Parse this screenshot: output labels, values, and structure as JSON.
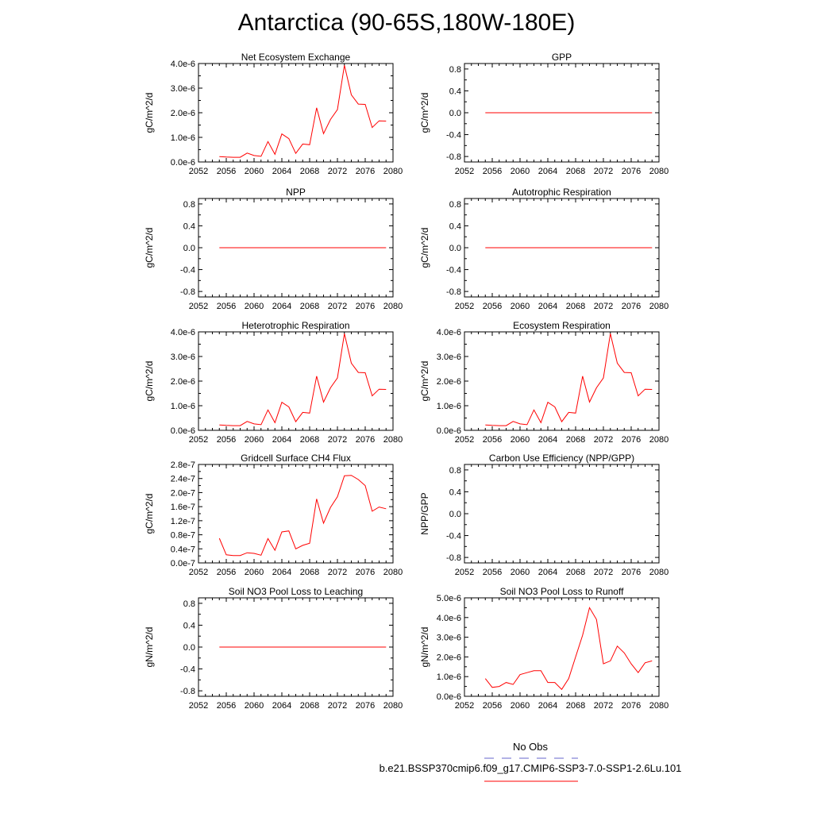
{
  "title": "Antarctica (90-65S,180W-180E)",
  "legend": {
    "obs_label": "No Obs",
    "obs_color": "#6666cc",
    "model_label": "b.e21.BSSP370cmip6.f09_g17.CMIP6-SSP3-7.0-SSP1-2.6Lu.101",
    "model_color": "#ff0000"
  },
  "chart_data": [
    {
      "type": "line",
      "title": "Net Ecosystem Exchange",
      "ylabel": "gC/m^2/d",
      "xlim": [
        2052,
        2080
      ],
      "xticks": [
        "2052",
        "2056",
        "2060",
        "2064",
        "2068",
        "2072",
        "2076",
        "2080"
      ],
      "ylim": [
        0,
        4e-06
      ],
      "yticks": [
        "0.0e-6",
        "1.0e-6",
        "2.0e-6",
        "3.0e-6",
        "4.0e-6"
      ],
      "x": [
        2055,
        2056,
        2057,
        2058,
        2059,
        2060,
        2061,
        2062,
        2063,
        2064,
        2065,
        2066,
        2067,
        2068,
        2069,
        2070,
        2071,
        2072,
        2073,
        2074,
        2075,
        2076,
        2077,
        2078,
        2079
      ],
      "series": [
        {
          "values": [
            2.2e-07,
            2e-07,
            1.9e-07,
            1.9e-07,
            3.6e-07,
            2.6e-07,
            2.3e-07,
            8.3e-07,
            3.1e-07,
            1.14e-06,
            9.5e-07,
            3.5e-07,
            7.3e-07,
            7e-07,
            2.2e-06,
            1.15e-06,
            1.73e-06,
            2.13e-06,
            3.93e-06,
            2.73e-06,
            2.35e-06,
            2.34e-06,
            1.4e-06,
            1.67e-06,
            1.66e-06
          ]
        }
      ]
    },
    {
      "type": "line",
      "title": "GPP",
      "ylabel": "gC/m^2/d",
      "xlim": [
        2052,
        2080
      ],
      "xticks": [
        "2052",
        "2056",
        "2060",
        "2064",
        "2068",
        "2072",
        "2076",
        "2080"
      ],
      "ylim": [
        -0.9,
        0.9
      ],
      "yticks": [
        "-0.8",
        "-0.4",
        "0.0",
        "0.4",
        "0.8"
      ],
      "x": [
        2055,
        2079
      ],
      "series": [
        {
          "values": [
            0,
            0
          ]
        }
      ]
    },
    {
      "type": "line",
      "title": "NPP",
      "ylabel": "gC/m^2/d",
      "xlim": [
        2052,
        2080
      ],
      "xticks": [
        "2052",
        "2056",
        "2060",
        "2064",
        "2068",
        "2072",
        "2076",
        "2080"
      ],
      "ylim": [
        -0.9,
        0.9
      ],
      "yticks": [
        "-0.8",
        "-0.4",
        "0.0",
        "0.4",
        "0.8"
      ],
      "x": [
        2055,
        2079
      ],
      "series": [
        {
          "values": [
            0,
            0
          ]
        }
      ]
    },
    {
      "type": "line",
      "title": "Autotrophic Respiration",
      "ylabel": "gC/m^2/d",
      "xlim": [
        2052,
        2080
      ],
      "xticks": [
        "2052",
        "2056",
        "2060",
        "2064",
        "2068",
        "2072",
        "2076",
        "2080"
      ],
      "ylim": [
        -0.9,
        0.9
      ],
      "yticks": [
        "-0.8",
        "-0.4",
        "0.0",
        "0.4",
        "0.8"
      ],
      "x": [
        2055,
        2079
      ],
      "series": [
        {
          "values": [
            0,
            0
          ]
        }
      ]
    },
    {
      "type": "line",
      "title": "Heterotrophic Respiration",
      "ylabel": "gC/m^2/d",
      "xlim": [
        2052,
        2080
      ],
      "xticks": [
        "2052",
        "2056",
        "2060",
        "2064",
        "2068",
        "2072",
        "2076",
        "2080"
      ],
      "ylim": [
        0,
        4e-06
      ],
      "yticks": [
        "0.0e-6",
        "1.0e-6",
        "2.0e-6",
        "3.0e-6",
        "4.0e-6"
      ],
      "x": [
        2055,
        2056,
        2057,
        2058,
        2059,
        2060,
        2061,
        2062,
        2063,
        2064,
        2065,
        2066,
        2067,
        2068,
        2069,
        2070,
        2071,
        2072,
        2073,
        2074,
        2075,
        2076,
        2077,
        2078,
        2079
      ],
      "series": [
        {
          "values": [
            2.2e-07,
            2e-07,
            1.9e-07,
            1.9e-07,
            3.6e-07,
            2.6e-07,
            2.3e-07,
            8.3e-07,
            3.1e-07,
            1.14e-06,
            9.5e-07,
            3.5e-07,
            7.3e-07,
            7e-07,
            2.2e-06,
            1.15e-06,
            1.73e-06,
            2.13e-06,
            3.93e-06,
            2.73e-06,
            2.35e-06,
            2.34e-06,
            1.4e-06,
            1.67e-06,
            1.66e-06
          ]
        }
      ]
    },
    {
      "type": "line",
      "title": "Ecosystem Respiration",
      "ylabel": "gC/m^2/d",
      "xlim": [
        2052,
        2080
      ],
      "xticks": [
        "2052",
        "2056",
        "2060",
        "2064",
        "2068",
        "2072",
        "2076",
        "2080"
      ],
      "ylim": [
        0,
        4e-06
      ],
      "yticks": [
        "0.0e-6",
        "1.0e-6",
        "2.0e-6",
        "3.0e-6",
        "4.0e-6"
      ],
      "x": [
        2055,
        2056,
        2057,
        2058,
        2059,
        2060,
        2061,
        2062,
        2063,
        2064,
        2065,
        2066,
        2067,
        2068,
        2069,
        2070,
        2071,
        2072,
        2073,
        2074,
        2075,
        2076,
        2077,
        2078,
        2079
      ],
      "series": [
        {
          "values": [
            2.2e-07,
            2e-07,
            1.9e-07,
            1.9e-07,
            3.6e-07,
            2.6e-07,
            2.3e-07,
            8.3e-07,
            3.1e-07,
            1.14e-06,
            9.5e-07,
            3.5e-07,
            7.3e-07,
            7e-07,
            2.2e-06,
            1.15e-06,
            1.73e-06,
            2.13e-06,
            3.93e-06,
            2.73e-06,
            2.35e-06,
            2.34e-06,
            1.4e-06,
            1.67e-06,
            1.66e-06
          ]
        }
      ]
    },
    {
      "type": "line",
      "title": "Gridcell Surface CH4 Flux",
      "ylabel": "gC/m^2/d",
      "xlim": [
        2052,
        2080
      ],
      "xticks": [
        "2052",
        "2056",
        "2060",
        "2064",
        "2068",
        "2072",
        "2076",
        "2080"
      ],
      "ylim": [
        0,
        2.8e-07
      ],
      "yticks": [
        "0.0e-7",
        "0.4e-7",
        "0.8e-7",
        "1.2e-7",
        "1.6e-7",
        "2.0e-7",
        "2.4e-7",
        "2.8e-7"
      ],
      "x": [
        2055,
        2056,
        2057,
        2058,
        2059,
        2060,
        2061,
        2062,
        2063,
        2064,
        2065,
        2066,
        2067,
        2068,
        2069,
        2070,
        2071,
        2072,
        2073,
        2074,
        2075,
        2076,
        2077,
        2078,
        2079
      ],
      "series": [
        {
          "values": [
            7e-08,
            2.3e-08,
            2.1e-08,
            2.1e-08,
            2.9e-08,
            2.7e-08,
            2.2e-08,
            6.9e-08,
            3.6e-08,
            8.8e-08,
            9.1e-08,
            4e-08,
            5e-08,
            5.6e-08,
            1.82e-07,
            1.13e-07,
            1.58e-07,
            1.88e-07,
            2.48e-07,
            2.49e-07,
            2.37e-07,
            2.2e-07,
            1.47e-07,
            1.59e-07,
            1.54e-07
          ]
        }
      ]
    },
    {
      "type": "line",
      "title": "Carbon Use Efficiency (NPP/GPP)",
      "ylabel": "NPP/GPP",
      "xlim": [
        2052,
        2080
      ],
      "xticks": [
        "2052",
        "2056",
        "2060",
        "2064",
        "2068",
        "2072",
        "2076",
        "2080"
      ],
      "ylim": [
        -0.9,
        0.9
      ],
      "yticks": [
        "-0.8",
        "-0.4",
        "0.0",
        "0.4",
        "0.8"
      ],
      "x": [],
      "series": [
        {
          "values": []
        }
      ]
    },
    {
      "type": "line",
      "title": "Soil NO3 Pool Loss to Leaching",
      "ylabel": "gN/m^2/d",
      "xlim": [
        2052,
        2080
      ],
      "xticks": [
        "2052",
        "2056",
        "2060",
        "2064",
        "2068",
        "2072",
        "2076",
        "2080"
      ],
      "ylim": [
        -0.9,
        0.9
      ],
      "yticks": [
        "-0.8",
        "-0.4",
        "0.0",
        "0.4",
        "0.8"
      ],
      "x": [
        2055,
        2079
      ],
      "series": [
        {
          "values": [
            0,
            0
          ]
        }
      ]
    },
    {
      "type": "line",
      "title": "Soil NO3 Pool Loss to Runoff",
      "ylabel": "gN/m^2/d",
      "xlim": [
        2052,
        2080
      ],
      "xticks": [
        "2052",
        "2056",
        "2060",
        "2064",
        "2068",
        "2072",
        "2076",
        "2080"
      ],
      "ylim": [
        0,
        5e-06
      ],
      "yticks": [
        "0.0e-6",
        "1.0e-6",
        "2.0e-6",
        "3.0e-6",
        "4.0e-6",
        "5.0e-6"
      ],
      "x": [
        2055,
        2056,
        2057,
        2058,
        2059,
        2060,
        2061,
        2062,
        2063,
        2064,
        2065,
        2066,
        2067,
        2068,
        2069,
        2070,
        2071,
        2072,
        2073,
        2074,
        2075,
        2076,
        2077,
        2078,
        2079
      ],
      "series": [
        {
          "values": [
            9e-07,
            4.5e-07,
            5e-07,
            7e-07,
            6e-07,
            1.1e-06,
            1.2e-06,
            1.3e-06,
            1.3e-06,
            7e-07,
            7e-07,
            3.5e-07,
            9e-07,
            2e-06,
            3.1e-06,
            4.5e-06,
            3.9e-06,
            1.65e-06,
            1.8e-06,
            2.55e-06,
            2.2e-06,
            1.65e-06,
            1.2e-06,
            1.7e-06,
            1.8e-06
          ]
        }
      ]
    }
  ]
}
